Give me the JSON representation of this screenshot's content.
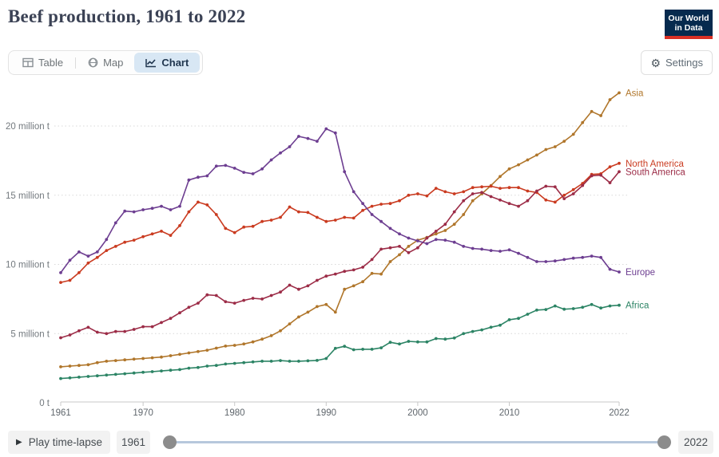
{
  "header": {
    "title": "Beef production, 1961 to 2022"
  },
  "logo": {
    "line1": "Our World",
    "line2": "in Data",
    "bg_color": "#062a4e",
    "accent_color": "#d93025"
  },
  "tabs": [
    {
      "label": "Table",
      "icon": "table-grid-icon",
      "active": false
    },
    {
      "label": "Map",
      "icon": "globe-icon",
      "active": false
    },
    {
      "label": "Chart",
      "icon": "line-chart-icon",
      "active": true
    }
  ],
  "settings": {
    "label": "Settings",
    "icon": "gear-icon"
  },
  "timeline": {
    "play_label": "Play time-lapse",
    "play_icon": "play-icon",
    "start_year": "1961",
    "end_year": "2022"
  },
  "colors": {
    "active_tab_bg": "#d8e7f4",
    "active_tab_fg": "#20364f",
    "slider_track": "#b7c8dc",
    "slider_handle": "#8c8c8c",
    "gridline": "#d8d8d8",
    "axis": "#c8c8c8",
    "tick_label": "#73797e"
  },
  "chart_data": {
    "type": "line",
    "title": "Beef production, 1961 to 2022",
    "unit": "million tonnes",
    "x_start": 1961,
    "x_end": 2022,
    "xticks": [
      1961,
      1970,
      1980,
      1990,
      2000,
      2010,
      2022
    ],
    "yticks": [
      {
        "value": 0,
        "label": "0 t"
      },
      {
        "value": 5,
        "label": "5 million t"
      },
      {
        "value": 10,
        "label": "10 million t"
      },
      {
        "value": 15,
        "label": "15 million t"
      },
      {
        "value": 20,
        "label": "20 million t"
      }
    ],
    "ylim": [
      0,
      22.5
    ],
    "grid": "dotted-horizontal",
    "legend_position": "end-of-line-labels",
    "series": [
      {
        "name": "Asia",
        "color": "#b0762b",
        "values": [
          2.6,
          2.65,
          2.7,
          2.75,
          2.9,
          3.0,
          3.05,
          3.1,
          3.15,
          3.2,
          3.25,
          3.3,
          3.4,
          3.5,
          3.6,
          3.7,
          3.8,
          3.95,
          4.1,
          4.15,
          4.25,
          4.4,
          4.6,
          4.85,
          5.2,
          5.7,
          6.2,
          6.55,
          6.95,
          7.1,
          6.55,
          8.2,
          8.45,
          8.75,
          9.35,
          9.3,
          10.2,
          10.7,
          11.3,
          11.75,
          11.95,
          12.2,
          12.45,
          12.9,
          13.6,
          14.6,
          15.1,
          15.7,
          16.35,
          16.9,
          17.2,
          17.55,
          17.9,
          18.3,
          18.5,
          18.9,
          19.4,
          20.25,
          21.05,
          20.75,
          21.9,
          22.4
        ]
      },
      {
        "name": "North America",
        "color": "#ca3b20",
        "values": [
          8.7,
          8.85,
          9.4,
          10.1,
          10.5,
          11.0,
          11.3,
          11.6,
          11.75,
          12.0,
          12.2,
          12.4,
          12.1,
          12.8,
          13.8,
          14.5,
          14.3,
          13.6,
          12.6,
          12.3,
          12.7,
          12.75,
          13.1,
          13.2,
          13.4,
          14.15,
          13.8,
          13.75,
          13.4,
          13.1,
          13.2,
          13.4,
          13.35,
          13.9,
          14.2,
          14.35,
          14.4,
          14.6,
          15.0,
          15.1,
          14.95,
          15.5,
          15.25,
          15.1,
          15.25,
          15.55,
          15.6,
          15.65,
          15.5,
          15.55,
          15.55,
          15.3,
          15.2,
          14.65,
          14.5,
          15.0,
          15.4,
          15.85,
          16.5,
          16.55,
          17.05,
          17.3
        ]
      },
      {
        "name": "South America",
        "color": "#9c2c47",
        "values": [
          4.7,
          4.9,
          5.2,
          5.45,
          5.1,
          5.0,
          5.15,
          5.15,
          5.3,
          5.5,
          5.5,
          5.8,
          6.1,
          6.5,
          6.9,
          7.2,
          7.8,
          7.75,
          7.3,
          7.2,
          7.4,
          7.55,
          7.5,
          7.75,
          8.0,
          8.5,
          8.2,
          8.45,
          8.85,
          9.15,
          9.3,
          9.5,
          9.6,
          9.8,
          10.35,
          11.1,
          11.2,
          11.3,
          10.85,
          11.2,
          11.9,
          12.4,
          12.9,
          13.8,
          14.6,
          15.1,
          15.2,
          14.9,
          14.65,
          14.4,
          14.2,
          14.6,
          15.3,
          15.65,
          15.6,
          14.75,
          15.1,
          15.7,
          16.4,
          16.45,
          15.9,
          16.7
        ]
      },
      {
        "name": "Europe",
        "color": "#6d3e91",
        "values": [
          9.4,
          10.3,
          10.9,
          10.6,
          10.9,
          11.8,
          13.0,
          13.85,
          13.8,
          13.95,
          14.05,
          14.2,
          13.95,
          14.2,
          16.1,
          16.3,
          16.4,
          17.1,
          17.15,
          16.95,
          16.65,
          16.55,
          16.9,
          17.55,
          18.05,
          18.5,
          19.25,
          19.1,
          18.9,
          19.8,
          19.5,
          16.7,
          15.25,
          14.4,
          13.6,
          13.1,
          12.6,
          12.2,
          11.9,
          11.7,
          11.5,
          11.8,
          11.75,
          11.6,
          11.3,
          11.15,
          11.1,
          11.0,
          10.95,
          11.05,
          10.8,
          10.5,
          10.2,
          10.2,
          10.25,
          10.35,
          10.45,
          10.5,
          10.6,
          10.5,
          9.65,
          9.45
        ]
      },
      {
        "name": "Africa",
        "color": "#2c8465",
        "values": [
          1.75,
          1.8,
          1.85,
          1.9,
          1.95,
          2.0,
          2.05,
          2.1,
          2.15,
          2.2,
          2.25,
          2.3,
          2.35,
          2.4,
          2.5,
          2.55,
          2.65,
          2.7,
          2.8,
          2.85,
          2.9,
          2.95,
          3.0,
          3.0,
          3.05,
          3.0,
          3.0,
          3.03,
          3.06,
          3.2,
          3.93,
          4.08,
          3.83,
          3.87,
          3.87,
          3.97,
          4.37,
          4.25,
          4.44,
          4.4,
          4.4,
          4.64,
          4.6,
          4.68,
          5.0,
          5.15,
          5.27,
          5.46,
          5.6,
          6.0,
          6.1,
          6.4,
          6.7,
          6.74,
          7.0,
          6.76,
          6.8,
          6.9,
          7.1,
          6.85,
          7.0,
          7.05
        ]
      }
    ]
  }
}
